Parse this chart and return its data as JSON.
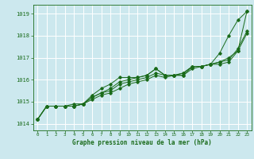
{
  "background_color": "#cce8ee",
  "plot_bg_color": "#cce8ee",
  "grid_color": "#ffffff",
  "line_color": "#1a6b1a",
  "text_color": "#1a6b1a",
  "xlabel": "Graphe pression niveau de la mer (hPa)",
  "ylim": [
    1013.7,
    1019.4
  ],
  "xlim": [
    -0.5,
    23.5
  ],
  "yticks": [
    1014,
    1015,
    1016,
    1017,
    1018,
    1019
  ],
  "xticks": [
    0,
    1,
    2,
    3,
    4,
    5,
    6,
    7,
    8,
    9,
    10,
    11,
    12,
    13,
    14,
    15,
    16,
    17,
    18,
    19,
    20,
    21,
    22,
    23
  ],
  "series": [
    [
      1014.2,
      1014.8,
      1014.8,
      1014.8,
      1014.8,
      1014.9,
      1015.3,
      1015.6,
      1015.8,
      1016.1,
      1016.1,
      1016.1,
      1016.2,
      1016.5,
      1016.2,
      1016.2,
      1016.2,
      1016.6,
      1016.6,
      1016.7,
      1017.2,
      1018.0,
      1018.7,
      1019.1
    ],
    [
      1014.2,
      1014.8,
      1014.8,
      1014.8,
      1014.8,
      1014.9,
      1015.1,
      1015.3,
      1015.4,
      1015.6,
      1015.8,
      1015.9,
      1016.0,
      1016.2,
      1016.1,
      1016.2,
      1016.2,
      1016.5,
      1016.6,
      1016.7,
      1016.7,
      1016.8,
      1017.3,
      1018.1
    ],
    [
      1014.2,
      1014.8,
      1014.8,
      1014.8,
      1014.9,
      1014.9,
      1015.2,
      1015.4,
      1015.5,
      1015.8,
      1015.9,
      1016.0,
      1016.1,
      1016.3,
      1016.2,
      1016.2,
      1016.3,
      1016.6,
      1016.6,
      1016.7,
      1016.8,
      1016.9,
      1017.4,
      1018.2
    ],
    [
      1014.2,
      1014.8,
      1014.8,
      1014.8,
      1014.8,
      1014.9,
      1015.2,
      1015.4,
      1015.6,
      1015.9,
      1016.0,
      1016.1,
      1016.2,
      1016.5,
      1016.2,
      1016.2,
      1016.3,
      1016.6,
      1016.6,
      1016.7,
      1016.8,
      1017.0,
      1017.3,
      1019.1
    ]
  ]
}
